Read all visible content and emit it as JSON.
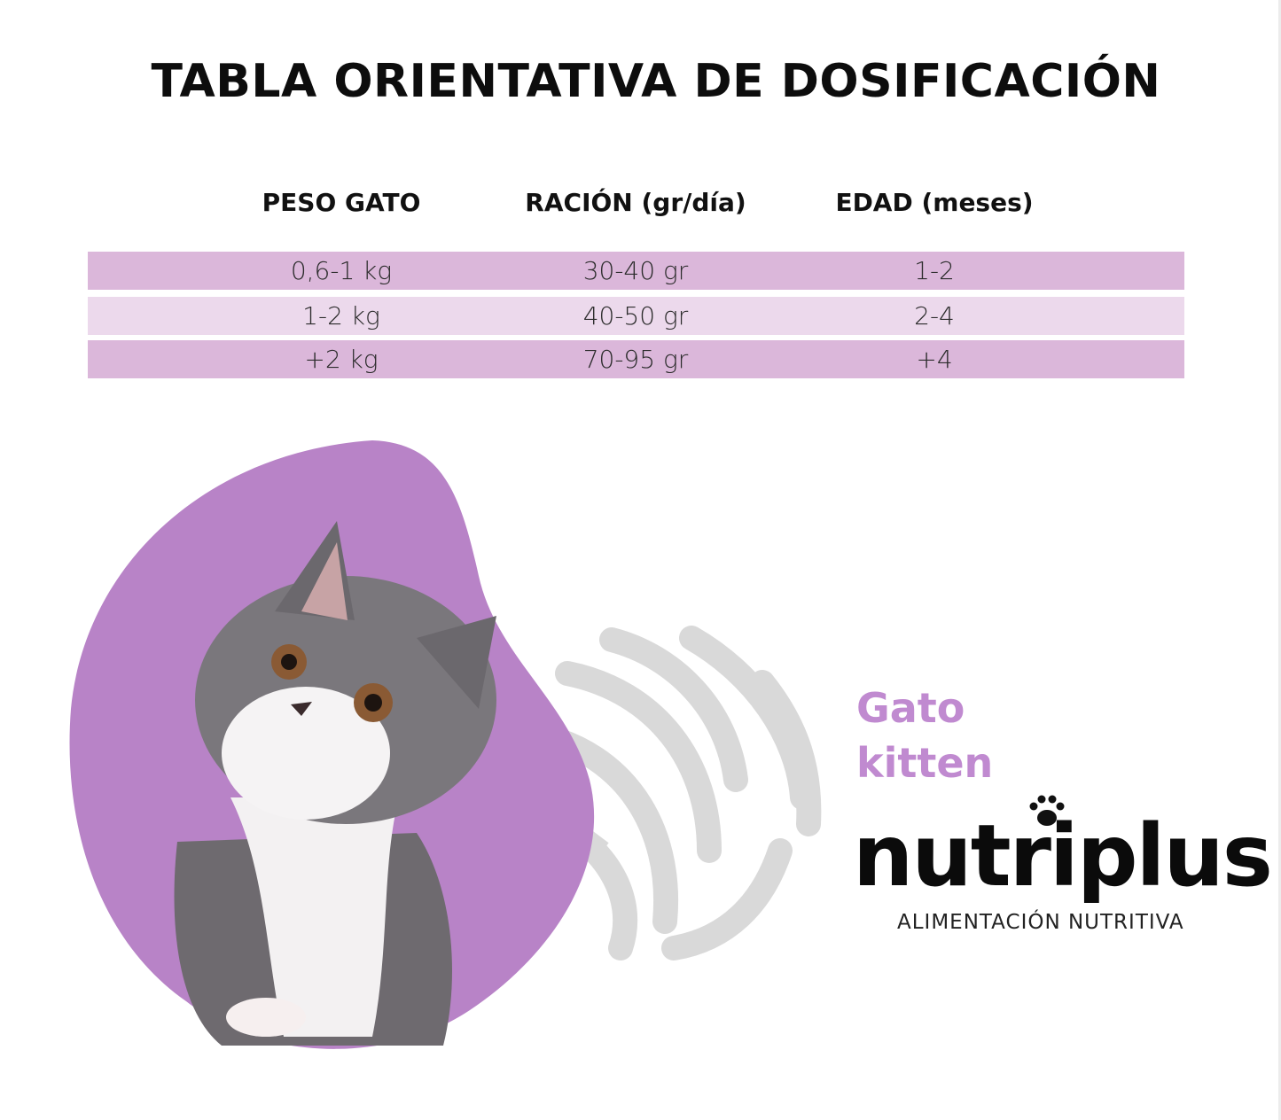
{
  "title": "TABLA ORIENTATIVA DE DOSIFICACIÓN",
  "table": {
    "headers": [
      "PESO GATO",
      "RACIÓN (gr/día)",
      "EDAD (meses)"
    ],
    "rows": [
      [
        "0,6-1 kg",
        "30-40 gr",
        "1-2"
      ],
      [
        "1-2 kg",
        "40-50 gr",
        "2-4"
      ],
      [
        "+2 kg",
        "70-95 gr",
        "+4"
      ]
    ]
  },
  "colors": {
    "row_dark": "#dbb7da",
    "row_light": "#ecd9ec",
    "accent_purple": "#c08ad0",
    "blob_purple": "#b883c7",
    "yarn_grey": "#d9d9d9"
  },
  "product": {
    "line1": "Gato",
    "line2": "kitten",
    "brand": "nutriplus",
    "tagline": "ALIMENTACIÓN NUTRITIVA"
  },
  "icons": [
    "paw-icon",
    "yarn-ball-icon"
  ]
}
